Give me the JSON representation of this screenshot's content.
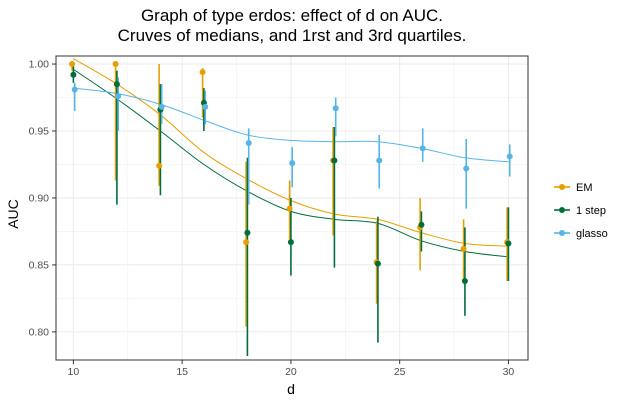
{
  "chart_data": {
    "type": "line",
    "title": "Graph of type erdos: effect of d on AUC.",
    "subtitle": "Cruves of medians, and 1rst and 3rd quartiles.",
    "xlabel": "d",
    "ylabel": "AUC",
    "xlim": [
      9.2,
      30.9
    ],
    "ylim": [
      0.779,
      1.006
    ],
    "xticks": [
      10,
      15,
      20,
      25,
      30
    ],
    "yticks": [
      0.8,
      0.85,
      0.9,
      0.95,
      1.0
    ],
    "ytick_labels": [
      "0.80",
      "0.85",
      "0.90",
      "0.95",
      "1.00"
    ],
    "grid": true,
    "legend_position": "right",
    "series": [
      {
        "name": "EM",
        "color": "#E69F00",
        "x": [
          10,
          12,
          14,
          16,
          18,
          20,
          22,
          24,
          26,
          28,
          30
        ],
        "median": [
          1.0,
          1.0,
          0.924,
          0.994,
          0.867,
          0.892,
          0.928,
          0.852,
          0.878,
          0.862,
          0.867
        ],
        "q1": [
          0.995,
          0.913,
          0.909,
          0.96,
          0.804,
          0.869,
          0.872,
          0.821,
          0.846,
          0.837,
          0.838
        ],
        "q3": [
          1.0,
          1.0,
          1.0,
          0.997,
          0.927,
          0.913,
          0.953,
          0.883,
          0.9,
          0.884,
          0.893
        ],
        "smooth": [
          1.004,
          0.985,
          0.962,
          0.934,
          0.914,
          0.898,
          0.888,
          0.884,
          0.874,
          0.866,
          0.864
        ]
      },
      {
        "name": "1 step",
        "color": "#006D3C",
        "x": [
          10,
          12,
          14,
          16,
          18,
          20,
          22,
          24,
          26,
          28,
          30
        ],
        "median": [
          0.992,
          0.985,
          0.966,
          0.971,
          0.874,
          0.867,
          0.928,
          0.851,
          0.88,
          0.838,
          0.866
        ],
        "q1": [
          0.986,
          0.895,
          0.902,
          0.95,
          0.782,
          0.842,
          0.848,
          0.792,
          0.86,
          0.812,
          0.838
        ],
        "q3": [
          1.0,
          0.995,
          0.985,
          0.982,
          0.93,
          0.9,
          0.953,
          0.886,
          0.89,
          0.878,
          0.893
        ],
        "smooth": [
          0.996,
          0.974,
          0.95,
          0.925,
          0.905,
          0.89,
          0.884,
          0.881,
          0.868,
          0.86,
          0.856
        ]
      },
      {
        "name": "glasso",
        "color": "#56B4E9",
        "x": [
          10,
          12,
          14,
          16,
          18,
          20,
          22,
          24,
          26,
          28,
          30
        ],
        "median": [
          0.981,
          0.976,
          0.968,
          0.968,
          0.941,
          0.926,
          0.967,
          0.928,
          0.937,
          0.922,
          0.931
        ],
        "q1": [
          0.965,
          0.95,
          0.955,
          0.955,
          0.895,
          0.908,
          0.946,
          0.907,
          0.927,
          0.892,
          0.916
        ],
        "q3": [
          0.986,
          0.99,
          0.985,
          0.98,
          0.952,
          0.938,
          0.975,
          0.947,
          0.952,
          0.944,
          0.94
        ],
        "smooth": [
          0.982,
          0.978,
          0.97,
          0.958,
          0.947,
          0.943,
          0.942,
          0.942,
          0.937,
          0.93,
          0.927
        ]
      }
    ]
  }
}
